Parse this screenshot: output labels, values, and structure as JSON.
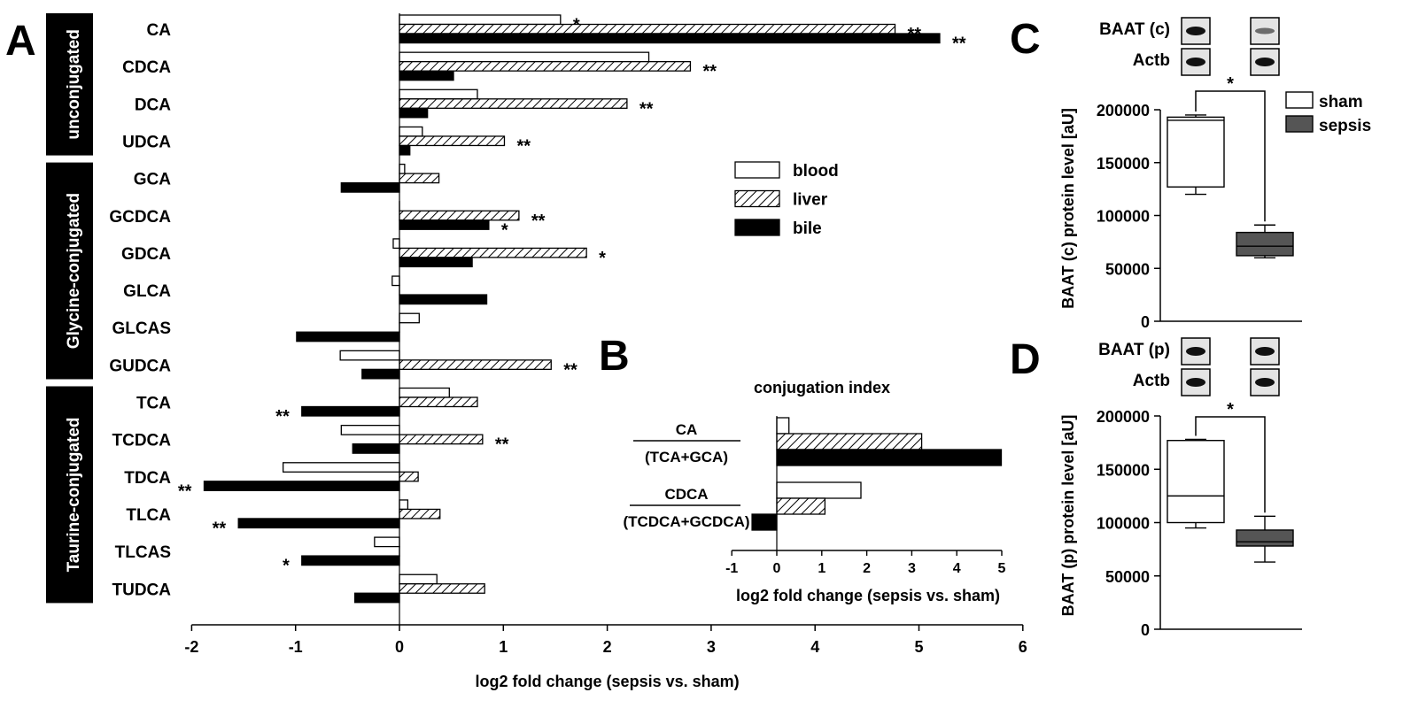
{
  "chart_data": [
    {
      "panel": "A",
      "type": "bar",
      "orientation": "horizontal",
      "xlabel": "log2 fold change (sepsis vs. sham)",
      "xlim": [
        -2,
        6
      ],
      "xticks": [
        "-2",
        "-1",
        "0",
        "1",
        "2",
        "3",
        "4",
        "5",
        "6"
      ],
      "xtick_values": [
        -2,
        -1,
        0,
        1,
        2,
        3,
        4,
        5,
        6
      ],
      "groups": [
        {
          "label": "unconjugated",
          "start": 0,
          "end": 3
        },
        {
          "label": "Glycine-conjugated",
          "start": 4,
          "end": 9
        },
        {
          "label": "Taurine-conjugated",
          "start": 10,
          "end": 15
        }
      ],
      "categories": [
        "CA",
        "CDCA",
        "DCA",
        "UDCA",
        "GCA",
        "GCDCA",
        "GDCA",
        "GLCA",
        "GLCAS",
        "GUDCA",
        "TCA",
        "TCDCA",
        "TDCA",
        "TLCA",
        "TLCAS",
        "TUDCA"
      ],
      "series": [
        {
          "name": "blood",
          "values": [
            1.55,
            2.4,
            0.75,
            0.22,
            0.05,
            0.0,
            -0.06,
            -0.07,
            0.19,
            -0.57,
            0.48,
            -0.56,
            -1.12,
            0.08,
            -0.24,
            0.36
          ],
          "significance": [
            "*",
            "",
            "",
            "",
            "",
            "",
            "",
            "",
            "",
            "",
            "",
            "",
            "",
            "",
            "",
            ""
          ]
        },
        {
          "name": "liver",
          "values": [
            4.77,
            2.8,
            2.19,
            1.01,
            0.38,
            1.15,
            1.8,
            0.0,
            0.0,
            1.46,
            0.75,
            0.8,
            0.18,
            0.39,
            0.0,
            0.82
          ],
          "significance": [
            "**",
            "**",
            "**",
            "**",
            "",
            "**",
            "*",
            "",
            "",
            "**",
            "",
            "**",
            "",
            "",
            "",
            ""
          ]
        },
        {
          "name": "bile",
          "values": [
            5.2,
            0.52,
            0.27,
            0.1,
            -0.56,
            0.86,
            0.7,
            0.84,
            -0.99,
            -0.36,
            -0.94,
            -0.45,
            -1.88,
            -1.55,
            -0.94,
            -0.43
          ],
          "significance": [
            "**",
            "",
            "",
            "",
            "",
            "*",
            "",
            "",
            "",
            "",
            "**",
            "",
            "**",
            "**",
            "*",
            ""
          ]
        }
      ],
      "legend": {
        "placement": "inside-right",
        "entries": [
          "blood",
          "liver",
          "bile"
        ]
      }
    },
    {
      "panel": "B",
      "type": "bar",
      "orientation": "horizontal",
      "title": "conjugation index",
      "xlabel": "log2 fold change (sepsis vs. sham)",
      "xlim": [
        -1,
        5
      ],
      "xticks": [
        "-1",
        "0",
        "1",
        "2",
        "3",
        "4",
        "5"
      ],
      "xtick_values": [
        -1,
        0,
        1,
        2,
        3,
        4,
        5
      ],
      "categories": [
        {
          "numerator": "CA",
          "denominator": "(TCA+GCA)"
        },
        {
          "numerator": "CDCA",
          "denominator": "(TCDCA+GCDCA)"
        }
      ],
      "series": [
        {
          "name": "blood",
          "values": [
            0.27,
            1.87
          ]
        },
        {
          "name": "liver",
          "values": [
            3.22,
            1.07
          ]
        },
        {
          "name": "bile",
          "values": [
            4.99,
            -0.55
          ]
        }
      ]
    },
    {
      "panel": "C",
      "type": "box",
      "ylabel": "BAAT (c) protein level [aU]",
      "ylim": [
        0,
        200000
      ],
      "yticks": [
        "0",
        "50000",
        "100000",
        "150000",
        "200000"
      ],
      "ytick_values": [
        0,
        50000,
        100000,
        150000,
        200000
      ],
      "blot_labels": [
        "BAAT (c)",
        "Actb"
      ],
      "significance": "*",
      "legend": {
        "placement": "top-right",
        "entries": [
          "sham",
          "sepsis"
        ]
      },
      "boxes": [
        {
          "name": "sham",
          "min": 120000,
          "q1": 127000,
          "median": 190000,
          "q3": 193000,
          "max": 195000,
          "color": "#ffffff"
        },
        {
          "name": "sepsis",
          "min": 60000,
          "q1": 62000,
          "median": 71000,
          "q3": 84000,
          "max": 91000,
          "color": "#555555"
        }
      ]
    },
    {
      "panel": "D",
      "type": "box",
      "ylabel": "BAAT (p) protein level [aU]",
      "ylim": [
        0,
        200000
      ],
      "yticks": [
        "0",
        "50000",
        "100000",
        "150000",
        "200000"
      ],
      "ytick_values": [
        0,
        50000,
        100000,
        150000,
        200000
      ],
      "blot_labels": [
        "BAAT (p)",
        "Actb"
      ],
      "significance": "*",
      "boxes": [
        {
          "name": "sham",
          "min": 95000,
          "q1": 100000,
          "median": 125000,
          "q3": 177000,
          "max": 178000,
          "color": "#ffffff"
        },
        {
          "name": "sepsis",
          "min": 63000,
          "q1": 78000,
          "median": 82000,
          "q3": 93000,
          "max": 106000,
          "color": "#555555"
        }
      ]
    }
  ],
  "panel_letters": [
    "A",
    "B",
    "C",
    "D"
  ]
}
